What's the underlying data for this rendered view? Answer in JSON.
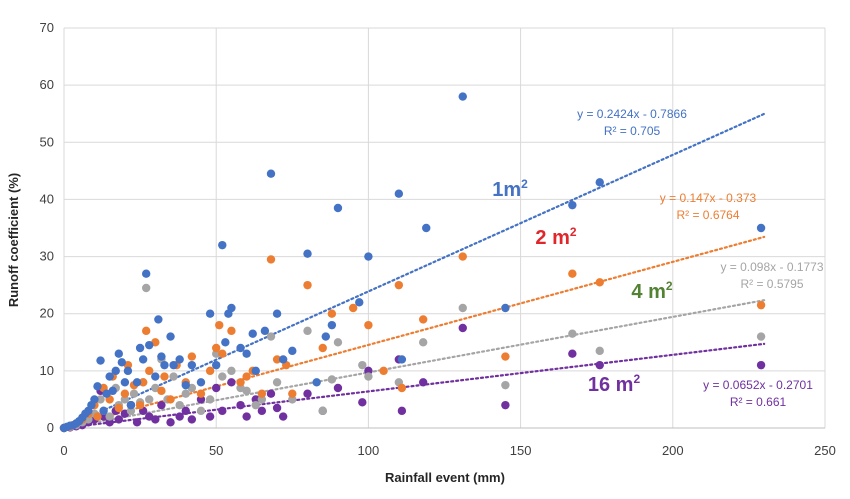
{
  "chart_data": {
    "type": "scatter",
    "xlabel": "Rainfall  event (mm)",
    "ylabel": "Runoff coefficient  (%)",
    "xlim": [
      0,
      250
    ],
    "ylim": [
      0,
      70
    ],
    "xticks": [
      0,
      50,
      100,
      150,
      200,
      250
    ],
    "yticks": [
      0,
      10,
      20,
      30,
      40,
      50,
      60,
      70
    ],
    "grid": "both",
    "trendline_x_range": [
      0,
      230
    ],
    "series": [
      {
        "id": "s1m2",
        "color": "#4472C4",
        "label_main": "1m",
        "label_sup": "2",
        "equation": "y = 0.2424x - 0.7866",
        "r2": "R² = 0.705",
        "slope": 0.2424,
        "intercept": -0.7866,
        "points": [
          [
            0,
            0
          ],
          [
            1,
            0.2
          ],
          [
            2,
            0.4
          ],
          [
            3,
            0.5
          ],
          [
            4,
            0.8
          ],
          [
            5,
            1.2
          ],
          [
            6,
            1.8
          ],
          [
            7,
            2.5
          ],
          [
            8,
            3
          ],
          [
            9,
            4
          ],
          [
            10,
            5
          ],
          [
            11,
            7.3
          ],
          [
            12,
            11.8
          ],
          [
            13,
            3
          ],
          [
            14,
            6
          ],
          [
            15,
            9
          ],
          [
            16,
            6.5
          ],
          [
            17,
            10
          ],
          [
            18,
            13
          ],
          [
            19,
            11.5
          ],
          [
            20,
            8
          ],
          [
            21,
            10
          ],
          [
            22,
            4
          ],
          [
            24,
            8
          ],
          [
            25,
            14
          ],
          [
            26,
            12
          ],
          [
            27,
            27
          ],
          [
            28,
            14.5
          ],
          [
            30,
            9
          ],
          [
            31,
            19
          ],
          [
            32,
            12.5
          ],
          [
            33,
            11
          ],
          [
            35,
            16
          ],
          [
            36,
            11
          ],
          [
            38,
            12
          ],
          [
            40,
            7.5
          ],
          [
            42,
            11
          ],
          [
            45,
            8
          ],
          [
            48,
            20
          ],
          [
            50,
            11
          ],
          [
            52,
            32
          ],
          [
            53,
            15
          ],
          [
            54,
            20
          ],
          [
            55,
            21
          ],
          [
            58,
            14
          ],
          [
            60,
            13
          ],
          [
            62,
            16.5
          ],
          [
            63,
            10
          ],
          [
            66,
            17
          ],
          [
            68,
            44.5
          ],
          [
            70,
            20
          ],
          [
            72,
            12
          ],
          [
            75,
            13.5
          ],
          [
            80,
            30.5
          ],
          [
            83,
            8
          ],
          [
            86,
            16
          ],
          [
            88,
            18
          ],
          [
            90,
            38.5
          ],
          [
            97,
            22
          ],
          [
            100,
            30
          ],
          [
            110,
            41
          ],
          [
            111,
            12
          ],
          [
            119,
            35
          ],
          [
            131,
            58
          ],
          [
            145,
            21
          ],
          [
            167,
            39
          ],
          [
            176,
            43
          ],
          [
            229,
            35
          ]
        ]
      },
      {
        "id": "s2m2",
        "color": "#ED7D31",
        "label_main": "2 m",
        "label_sup": "2",
        "equation": "y = 0.147x - 0.373",
        "r2": "R² = 0.6764",
        "slope": 0.147,
        "intercept": -0.373,
        "points": [
          [
            0,
            0
          ],
          [
            2,
            0.3
          ],
          [
            4,
            0.8
          ],
          [
            6,
            1.5
          ],
          [
            8,
            2.5
          ],
          [
            10,
            4
          ],
          [
            11,
            2
          ],
          [
            13,
            7
          ],
          [
            15,
            5
          ],
          [
            16,
            9
          ],
          [
            18,
            3.5
          ],
          [
            20,
            6
          ],
          [
            21,
            11
          ],
          [
            23,
            7.5
          ],
          [
            25,
            4
          ],
          [
            26,
            8
          ],
          [
            27,
            17
          ],
          [
            28,
            10
          ],
          [
            30,
            15
          ],
          [
            32,
            6.5
          ],
          [
            33,
            9
          ],
          [
            35,
            5
          ],
          [
            37,
            11
          ],
          [
            40,
            8
          ],
          [
            42,
            12.5
          ],
          [
            45,
            6
          ],
          [
            48,
            10
          ],
          [
            50,
            14
          ],
          [
            51,
            18
          ],
          [
            52,
            13
          ],
          [
            55,
            17
          ],
          [
            58,
            8
          ],
          [
            60,
            9
          ],
          [
            62,
            10
          ],
          [
            65,
            6
          ],
          [
            68,
            29.5
          ],
          [
            70,
            12
          ],
          [
            73,
            11
          ],
          [
            75,
            6
          ],
          [
            80,
            25
          ],
          [
            85,
            14
          ],
          [
            88,
            20
          ],
          [
            95,
            21
          ],
          [
            100,
            18
          ],
          [
            105,
            10
          ],
          [
            110,
            25
          ],
          [
            111,
            7
          ],
          [
            118,
            19
          ],
          [
            131,
            30
          ],
          [
            145,
            12.5
          ],
          [
            167,
            27
          ],
          [
            176,
            25.5
          ],
          [
            229,
            21.5
          ]
        ]
      },
      {
        "id": "s4m2",
        "color": "#A5A5A5",
        "label_main": "4 m",
        "label_sup": "2",
        "equation": "y = 0.098x - 0.1773",
        "r2": "R² = 0.5795",
        "slope": 0.098,
        "intercept": -0.1773,
        "points": [
          [
            0,
            0
          ],
          [
            2,
            0.2
          ],
          [
            4,
            0.5
          ],
          [
            6,
            1
          ],
          [
            8,
            1.5
          ],
          [
            10,
            2.5
          ],
          [
            12,
            5
          ],
          [
            13,
            3
          ],
          [
            15,
            2
          ],
          [
            17,
            7
          ],
          [
            18,
            4
          ],
          [
            20,
            5
          ],
          [
            22,
            3
          ],
          [
            23,
            6
          ],
          [
            25,
            4.5
          ],
          [
            26,
            8
          ],
          [
            27,
            24.5
          ],
          [
            28,
            5
          ],
          [
            30,
            7
          ],
          [
            32,
            12
          ],
          [
            34,
            5
          ],
          [
            36,
            9
          ],
          [
            38,
            4
          ],
          [
            40,
            6
          ],
          [
            42,
            7
          ],
          [
            45,
            3
          ],
          [
            48,
            5
          ],
          [
            50,
            13
          ],
          [
            52,
            9
          ],
          [
            55,
            10
          ],
          [
            58,
            7
          ],
          [
            60,
            6.5
          ],
          [
            63,
            4
          ],
          [
            65,
            5
          ],
          [
            68,
            16
          ],
          [
            70,
            8
          ],
          [
            75,
            5
          ],
          [
            80,
            17
          ],
          [
            85,
            3
          ],
          [
            88,
            8.5
          ],
          [
            90,
            15
          ],
          [
            98,
            11
          ],
          [
            100,
            9
          ],
          [
            110,
            8
          ],
          [
            118,
            15
          ],
          [
            131,
            21
          ],
          [
            145,
            7.5
          ],
          [
            167,
            16.5
          ],
          [
            176,
            13.5
          ],
          [
            229,
            16
          ]
        ]
      },
      {
        "id": "s16m2",
        "color": "#7030A0",
        "label_main": "16 m",
        "label_sup": "2",
        "equation": "y = 0.0652x - 0.2701",
        "r2": "R² = 0.661",
        "slope": 0.0652,
        "intercept": -0.2701,
        "points": [
          [
            0,
            0
          ],
          [
            2,
            0.1
          ],
          [
            4,
            0.3
          ],
          [
            6,
            0.5
          ],
          [
            8,
            1
          ],
          [
            10,
            1.5
          ],
          [
            12,
            6.5
          ],
          [
            13,
            2
          ],
          [
            15,
            1
          ],
          [
            17,
            3
          ],
          [
            18,
            1.5
          ],
          [
            20,
            2.5
          ],
          [
            22,
            4
          ],
          [
            24,
            1
          ],
          [
            26,
            3
          ],
          [
            28,
            2
          ],
          [
            30,
            1.5
          ],
          [
            32,
            4
          ],
          [
            35,
            1
          ],
          [
            38,
            2
          ],
          [
            40,
            3
          ],
          [
            42,
            1.5
          ],
          [
            45,
            5
          ],
          [
            48,
            2
          ],
          [
            50,
            7
          ],
          [
            52,
            3
          ],
          [
            55,
            8
          ],
          [
            58,
            4
          ],
          [
            60,
            2
          ],
          [
            63,
            5
          ],
          [
            65,
            3
          ],
          [
            68,
            6
          ],
          [
            70,
            3.5
          ],
          [
            72,
            2
          ],
          [
            80,
            6
          ],
          [
            85,
            3
          ],
          [
            90,
            7
          ],
          [
            98,
            4.5
          ],
          [
            100,
            10
          ],
          [
            110,
            12
          ],
          [
            111,
            3
          ],
          [
            118,
            8
          ],
          [
            131,
            17.5
          ],
          [
            145,
            4
          ],
          [
            167,
            13
          ],
          [
            176,
            11
          ],
          [
            229,
            11
          ]
        ]
      }
    ]
  }
}
